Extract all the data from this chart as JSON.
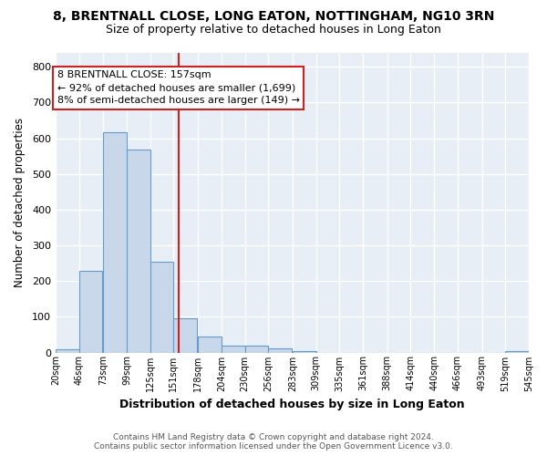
{
  "title": "8, BRENTNALL CLOSE, LONG EATON, NOTTINGHAM, NG10 3RN",
  "subtitle": "Size of property relative to detached houses in Long Eaton",
  "xlabel": "Distribution of detached houses by size in Long Eaton",
  "ylabel": "Number of detached properties",
  "bar_color": "#c8d8ea",
  "bar_edge_color": "#6699cc",
  "background_color": "#e8eef6",
  "grid_color": "#ffffff",
  "vline_x": 157,
  "vline_color": "#cc2222",
  "annotation_line1": "8 BRENTNALL CLOSE: 157sqm",
  "annotation_line2": "← 92% of detached houses are smaller (1,699)",
  "annotation_line3": "8% of semi-detached houses are larger (149) →",
  "annotation_box_color": "#cc2222",
  "bins": [
    20,
    46,
    73,
    99,
    125,
    151,
    178,
    204,
    230,
    256,
    283,
    309,
    335,
    361,
    388,
    414,
    440,
    466,
    493,
    519,
    545
  ],
  "bar_heights": [
    10,
    228,
    617,
    567,
    255,
    96,
    44,
    20,
    20,
    11,
    5,
    0,
    0,
    0,
    0,
    0,
    0,
    0,
    0,
    5
  ],
  "tick_labels": [
    "20sqm",
    "46sqm",
    "73sqm",
    "99sqm",
    "125sqm",
    "151sqm",
    "178sqm",
    "204sqm",
    "230sqm",
    "256sqm",
    "283sqm",
    "309sqm",
    "335sqm",
    "361sqm",
    "388sqm",
    "414sqm",
    "440sqm",
    "466sqm",
    "493sqm",
    "519sqm",
    "545sqm"
  ],
  "yticks": [
    0,
    100,
    200,
    300,
    400,
    500,
    600,
    700,
    800
  ],
  "ylim": [
    0,
    840
  ],
  "xlim_min": 20,
  "xlim_max": 545,
  "footer_text": "Contains HM Land Registry data © Crown copyright and database right 2024.\nContains public sector information licensed under the Open Government Licence v3.0."
}
